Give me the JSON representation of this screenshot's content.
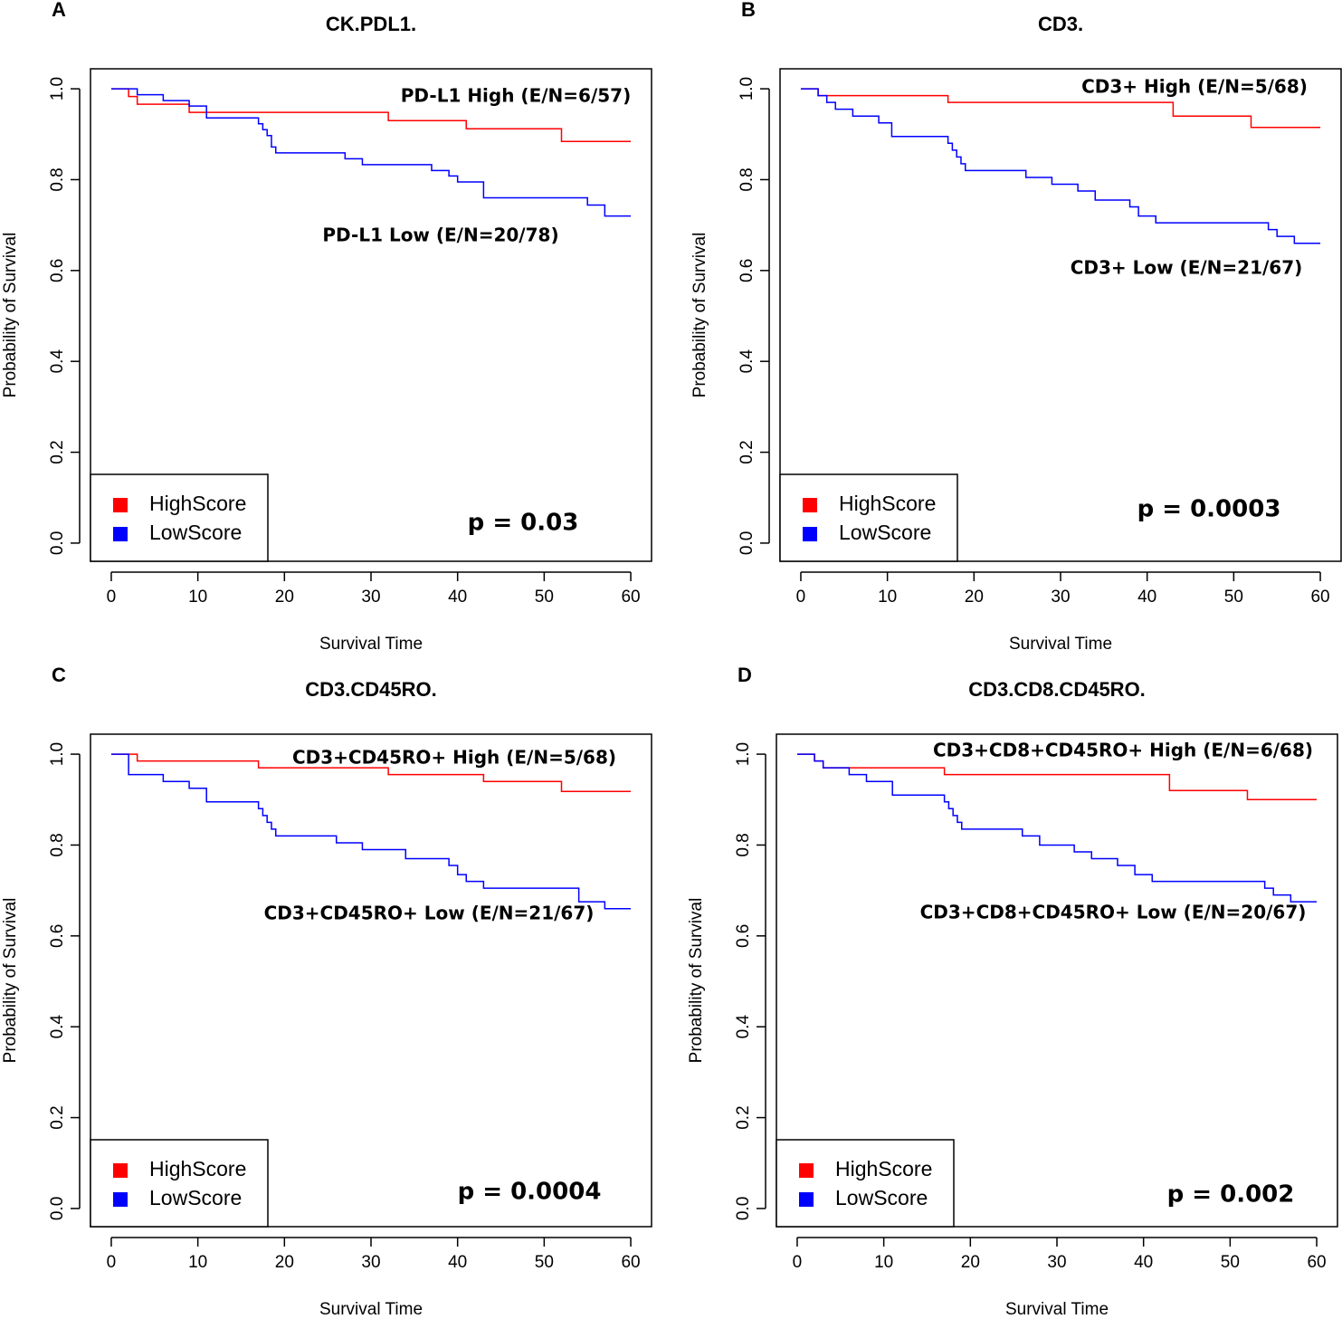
{
  "chart_data": [
    {
      "type": "step",
      "panel": "A",
      "title": "CK.PDL1.",
      "xlabel": "Survival Time",
      "ylabel": "Probability of Survival",
      "annotations": [
        "PD-L1 High (E/N=6/57)",
        "PD-L1 Low (E/N=20/78)"
      ],
      "p_text": "p = 0.03",
      "xlim": [
        -2.4,
        62.4
      ],
      "ylim": [
        -0.04,
        1.044
      ],
      "xticks": [
        0,
        10,
        20,
        30,
        40,
        50,
        60
      ],
      "yticks": [
        {
          "value": 0,
          "label": "0.0"
        },
        0.2,
        0.4,
        0.6,
        0.8,
        {
          "value": 1,
          "label": "1.0"
        }
      ],
      "legend": "bottom-left",
      "series": [
        {
          "name": "HighScore",
          "color": "#ff0000",
          "x": [
            0,
            2,
            3,
            9,
            32,
            41,
            52,
            60
          ],
          "values": [
            1,
            0.983,
            0.966,
            0.948,
            0.93,
            0.912,
            0.884,
            0.884
          ]
        },
        {
          "name": "LowScore",
          "color": "#0000ff",
          "x": [
            0,
            3,
            6,
            9,
            11,
            17,
            17.5,
            18,
            18.5,
            19,
            27,
            29,
            37,
            39,
            40,
            43,
            55,
            57,
            60
          ],
          "values": [
            1,
            0.987,
            0.974,
            0.962,
            0.936,
            0.923,
            0.91,
            0.897,
            0.872,
            0.859,
            0.846,
            0.833,
            0.82,
            0.808,
            0.795,
            0.76,
            0.744,
            0.72,
            0.72
          ]
        }
      ]
    },
    {
      "type": "step",
      "panel": "B",
      "title": "CD3.",
      "xlabel": "Survival Time",
      "ylabel": "Probability of Survival",
      "annotations": [
        "CD3+ High (E/N=5/68)",
        "CD3+ Low (E/N=21/67)"
      ],
      "p_text": "p = 0.0003",
      "xlim": [
        -2.4,
        62.4
      ],
      "ylim": [
        -0.04,
        1.044
      ],
      "xticks": [
        0,
        10,
        20,
        30,
        40,
        50,
        60
      ],
      "yticks": [
        {
          "value": 0,
          "label": "0.0"
        },
        0.2,
        0.4,
        0.6,
        0.8,
        {
          "value": 1,
          "label": "1.0"
        }
      ],
      "legend": "bottom-left",
      "series": [
        {
          "name": "HighScore",
          "color": "#ff0000",
          "x": [
            0,
            2,
            17,
            43,
            52,
            60
          ],
          "values": [
            1,
            0.985,
            0.97,
            0.94,
            0.915,
            0.915
          ]
        },
        {
          "name": "LowScore",
          "color": "#0000ff",
          "x": [
            0,
            2,
            3,
            4,
            6,
            9,
            10.5,
            17,
            17.5,
            18,
            18.5,
            19,
            26,
            29,
            32,
            34,
            38,
            39,
            41,
            54,
            55,
            57,
            60
          ],
          "values": [
            1,
            0.985,
            0.97,
            0.955,
            0.94,
            0.925,
            0.895,
            0.88,
            0.865,
            0.85,
            0.835,
            0.82,
            0.805,
            0.79,
            0.775,
            0.755,
            0.74,
            0.72,
            0.705,
            0.69,
            0.675,
            0.66,
            0.66
          ]
        }
      ]
    },
    {
      "type": "step",
      "panel": "C",
      "title": "CD3.CD45RO.",
      "xlabel": "Survival Time",
      "ylabel": "Probability of Survival",
      "annotations": [
        "CD3+CD45RO+ High (E/N=5/68)",
        "CD3+CD45RO+ Low (E/N=21/67)"
      ],
      "p_text": "p = 0.0004",
      "xlim": [
        -2.4,
        62.4
      ],
      "ylim": [
        -0.04,
        1.044
      ],
      "xticks": [
        0,
        10,
        20,
        30,
        40,
        50,
        60
      ],
      "yticks": [
        {
          "value": 0,
          "label": "0.0"
        },
        0.2,
        0.4,
        0.6,
        0.8,
        {
          "value": 1,
          "label": "1.0"
        }
      ],
      "legend": "bottom-left",
      "series": [
        {
          "name": "HighScore",
          "color": "#ff0000",
          "x": [
            0,
            3,
            17,
            32,
            43,
            52,
            60
          ],
          "values": [
            1,
            0.985,
            0.97,
            0.955,
            0.94,
            0.918,
            0.918
          ]
        },
        {
          "name": "LowScore",
          "color": "#0000ff",
          "x": [
            0,
            2,
            6,
            9,
            11,
            17,
            17.5,
            18,
            18.5,
            19,
            26,
            29,
            34,
            39,
            40,
            41,
            43,
            54,
            57,
            60
          ],
          "values": [
            1,
            0.955,
            0.94,
            0.925,
            0.895,
            0.88,
            0.865,
            0.85,
            0.835,
            0.82,
            0.805,
            0.79,
            0.77,
            0.755,
            0.735,
            0.72,
            0.705,
            0.675,
            0.66,
            0.66
          ]
        }
      ]
    },
    {
      "type": "step",
      "panel": "D",
      "title": "CD3.CD8.CD45RO.",
      "xlabel": "Survival Time",
      "ylabel": "Probability of Survival",
      "annotations": [
        "CD3+CD8+CD45RO+ High (E/N=6/68)",
        "CD3+CD8+CD45RO+ Low (E/N=20/67)"
      ],
      "p_text": "p = 0.002",
      "xlim": [
        -2.4,
        62.4
      ],
      "ylim": [
        -0.04,
        1.044
      ],
      "xticks": [
        0,
        10,
        20,
        30,
        40,
        50,
        60
      ],
      "yticks": [
        {
          "value": 0,
          "label": "0.0"
        },
        0.2,
        0.4,
        0.6,
        0.8,
        {
          "value": 1,
          "label": "1.0"
        }
      ],
      "legend": "bottom-left",
      "series": [
        {
          "name": "HighScore",
          "color": "#ff0000",
          "x": [
            0,
            2,
            3,
            17,
            43,
            52,
            60
          ],
          "values": [
            1,
            0.985,
            0.97,
            0.955,
            0.92,
            0.9,
            0.9
          ]
        },
        {
          "name": "LowScore",
          "color": "#0000ff",
          "x": [
            0,
            2,
            3,
            6,
            8,
            11,
            17,
            17.5,
            18,
            18.5,
            19,
            26,
            28,
            32,
            34,
            37,
            39,
            41,
            54,
            55,
            57,
            60
          ],
          "values": [
            1,
            0.985,
            0.97,
            0.955,
            0.94,
            0.91,
            0.895,
            0.88,
            0.865,
            0.85,
            0.835,
            0.82,
            0.8,
            0.785,
            0.77,
            0.755,
            0.735,
            0.72,
            0.705,
            0.69,
            0.675,
            0.675
          ]
        }
      ]
    }
  ]
}
